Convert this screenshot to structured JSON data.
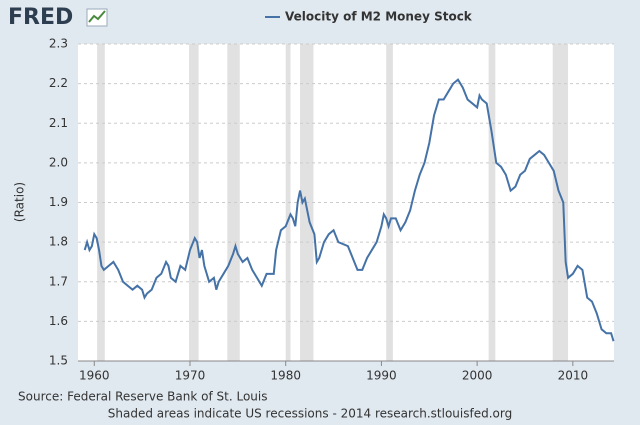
{
  "chart_data": {
    "type": "line",
    "logo": "FRED",
    "ylabel": "(Ratio)",
    "source": "Source: Federal Reserve Bank of St. Louis",
    "note": "Shaded areas indicate US recessions - 2014 research.stlouisfed.org",
    "x": [
      1959.0,
      1959.25,
      1959.5,
      1959.75,
      1960.0,
      1960.25,
      1960.5,
      1960.75,
      1961.0,
      1961.5,
      1962.0,
      1962.25,
      1962.5,
      1963.0,
      1963.5,
      1964.0,
      1964.5,
      1965.0,
      1965.25,
      1965.5,
      1966.0,
      1966.5,
      1967.0,
      1967.5,
      1967.75,
      1968.0,
      1968.5,
      1969.0,
      1969.5,
      1970.0,
      1970.5,
      1970.75,
      1971.0,
      1971.25,
      1971.5,
      1972.0,
      1972.5,
      1972.75,
      1973.0,
      1973.5,
      1974.0,
      1974.5,
      1974.75,
      1975.0,
      1975.5,
      1976.0,
      1976.5,
      1977.0,
      1977.5,
      1978.0,
      1978.75,
      1979.0,
      1979.5,
      1980.0,
      1980.5,
      1980.75,
      1981.0,
      1981.25,
      1981.5,
      1981.75,
      1982.0,
      1982.5,
      1983.0,
      1983.25,
      1983.5,
      1984.0,
      1984.5,
      1985.0,
      1985.5,
      1986.5,
      1987.0,
      1987.5,
      1988.0,
      1988.5,
      1989.0,
      1989.5,
      1990.0,
      1990.25,
      1990.5,
      1990.75,
      1991.0,
      1991.5,
      1992.0,
      1992.5,
      1993.0,
      1993.5,
      1994.0,
      1994.5,
      1995.0,
      1995.5,
      1996.0,
      1996.5,
      1997.0,
      1997.5,
      1998.0,
      1998.5,
      1999.0,
      1999.5,
      2000.0,
      2000.25,
      2000.5,
      2001.0,
      2001.5,
      2002.0,
      2002.5,
      2003.0,
      2003.5,
      2004.0,
      2004.5,
      2005.0,
      2005.5,
      2006.0,
      2006.5,
      2007.0,
      2007.5,
      2008.0,
      2008.5,
      2009.0,
      2009.25,
      2009.5,
      2010.0,
      2010.5,
      2011.0,
      2011.5,
      2012.0,
      2012.5,
      2013.0,
      2013.5,
      2014.0,
      2014.25
    ],
    "series": [
      {
        "name": "Velocity of M2 Money Stock",
        "color": "#4572a7",
        "values": [
          1.78,
          1.8,
          1.78,
          1.79,
          1.82,
          1.81,
          1.78,
          1.74,
          1.73,
          1.74,
          1.75,
          1.74,
          1.73,
          1.7,
          1.69,
          1.68,
          1.69,
          1.68,
          1.66,
          1.67,
          1.68,
          1.71,
          1.72,
          1.75,
          1.74,
          1.71,
          1.7,
          1.74,
          1.73,
          1.78,
          1.81,
          1.8,
          1.76,
          1.78,
          1.74,
          1.7,
          1.71,
          1.68,
          1.7,
          1.72,
          1.74,
          1.77,
          1.79,
          1.77,
          1.75,
          1.76,
          1.73,
          1.71,
          1.69,
          1.72,
          1.72,
          1.78,
          1.83,
          1.84,
          1.87,
          1.86,
          1.84,
          1.9,
          1.93,
          1.9,
          1.91,
          1.85,
          1.82,
          1.75,
          1.76,
          1.8,
          1.82,
          1.83,
          1.8,
          1.79,
          1.76,
          1.73,
          1.73,
          1.76,
          1.78,
          1.8,
          1.84,
          1.87,
          1.86,
          1.84,
          1.86,
          1.86,
          1.83,
          1.85,
          1.88,
          1.93,
          1.97,
          2.0,
          2.05,
          2.12,
          2.16,
          2.16,
          2.18,
          2.2,
          2.21,
          2.19,
          2.16,
          2.15,
          2.14,
          2.17,
          2.16,
          2.15,
          2.08,
          2.0,
          1.99,
          1.97,
          1.93,
          1.94,
          1.97,
          1.98,
          2.01,
          2.02,
          2.03,
          2.02,
          2.0,
          1.98,
          1.93,
          1.9,
          1.75,
          1.71,
          1.72,
          1.74,
          1.73,
          1.66,
          1.65,
          1.62,
          1.58,
          1.57,
          1.57,
          1.55
        ]
      }
    ],
    "recessions": [
      [
        1960.3,
        1961.1
      ],
      [
        1969.9,
        1970.9
      ],
      [
        1973.9,
        1975.2
      ],
      [
        1980.0,
        1980.5
      ],
      [
        1981.5,
        1982.9
      ],
      [
        1990.5,
        1991.2
      ],
      [
        2001.2,
        2001.9
      ],
      [
        2007.9,
        2009.5
      ]
    ],
    "recession_color": "#e1e1e1",
    "xlim": [
      1958.3,
      2014.3
    ],
    "xticks": [
      1960,
      1970,
      1980,
      1990,
      2000,
      2010
    ],
    "ylim": [
      1.5,
      2.3
    ],
    "yticks": [
      1.5,
      1.6,
      1.7,
      1.8,
      1.9,
      {
        "value": 2,
        "label": "2.0"
      },
      2.1,
      2.2,
      2.3
    ],
    "grid": true
  }
}
